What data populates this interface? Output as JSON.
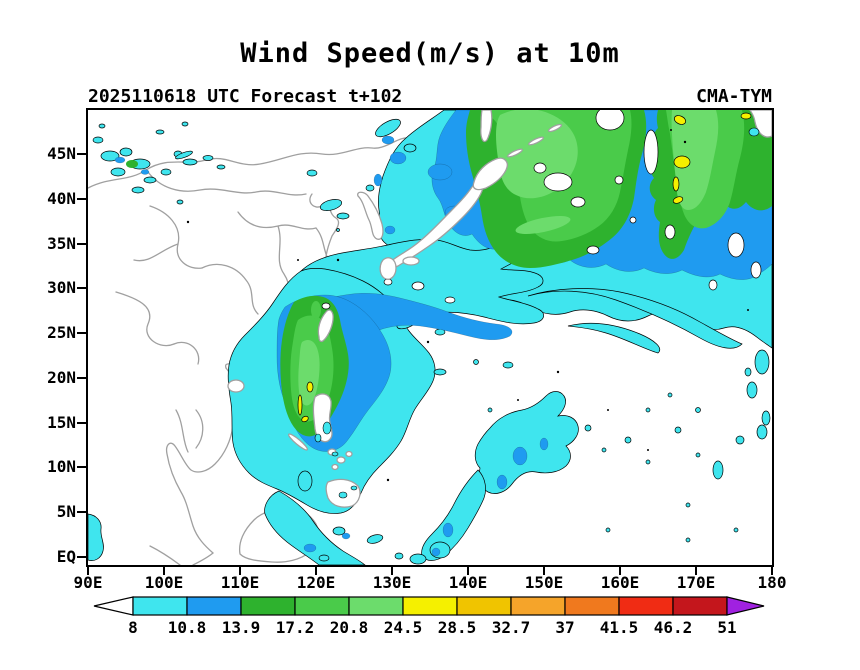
{
  "title": "Wind Speed(m/s) at 10m",
  "header": {
    "left": "2025110618 UTC Forecast t+102",
    "right": "CMA-TYM"
  },
  "axes": {
    "lat_labels": [
      "EQ",
      "5N",
      "10N",
      "15N",
      "20N",
      "25N",
      "30N",
      "35N",
      "40N",
      "45N"
    ],
    "lat_degrees": [
      0,
      5,
      10,
      15,
      20,
      25,
      30,
      35,
      40,
      45
    ],
    "lon_labels": [
      "90E",
      "100E",
      "110E",
      "120E",
      "130E",
      "140E",
      "150E",
      "160E",
      "170E",
      "180"
    ],
    "lon_degrees": [
      90,
      100,
      110,
      120,
      130,
      140,
      150,
      160,
      170,
      180
    ]
  },
  "colorbar": {
    "levels": [
      "8",
      "10.8",
      "13.9",
      "17.2",
      "20.8",
      "24.5",
      "28.5",
      "32.7",
      "37",
      "41.5",
      "46.2",
      "51"
    ],
    "cell_colors": [
      "#3FE5EE",
      "#1F9BF0",
      "#2EB22E",
      "#4ACB4A",
      "#6CDC6C",
      "#F5F000",
      "#F0C400",
      "#F5A42A",
      "#F0791E",
      "#F02C14",
      "#C4161C"
    ],
    "below_color": "#FFFFFF",
    "above_color": "#A021E0"
  },
  "chart_data": {
    "type": "heatmap",
    "subtype": "filled_contour_forecast_map",
    "title": "Wind Speed(m/s) at 10m",
    "model": "CMA-TYM",
    "init_time": "2025110618 UTC",
    "forecast_step": "t+102",
    "x": {
      "label": "longitude",
      "ticks": [
        "90E",
        "100E",
        "110E",
        "120E",
        "130E",
        "140E",
        "150E",
        "160E",
        "170E",
        "180"
      ],
      "range_deg": [
        90,
        180
      ]
    },
    "y": {
      "label": "latitude",
      "ticks": [
        "EQ",
        "5N",
        "10N",
        "15N",
        "20N",
        "25N",
        "30N",
        "35N",
        "40N",
        "45N"
      ],
      "range_deg": [
        0,
        50
      ]
    },
    "contour_levels_ms": [
      8,
      10.8,
      13.9,
      17.2,
      20.8,
      24.5,
      28.5,
      32.7,
      37,
      41.5,
      46.2,
      51
    ],
    "palette": [
      "#3FE5EE",
      "#1F9BF0",
      "#2EB22E",
      "#4ACB4A",
      "#6CDC6C",
      "#F5F000",
      "#F0C400",
      "#F5A42A",
      "#F0791E",
      "#F02C14",
      "#C4161C"
    ],
    "legend_position": "bottom",
    "grid": false,
    "regions": [
      {
        "name": "northwest-china-patches",
        "lon": "90E-108E",
        "lat": "40N-48N",
        "max_bin_ms": "17.2-20.8"
      },
      {
        "name": "sea-of-japan-okhotsk-storm-west-lobe",
        "lon": "128E-162E",
        "lat": "30N-50N",
        "max_bin_ms": "20.8-24.5"
      },
      {
        "name": "nw-pacific-storm-east-lobe",
        "lon": "162E-180",
        "lat": "33N-50N",
        "max_bin_ms": "24.5-28.5"
      },
      {
        "name": "east-china-sea-band",
        "lon": "117E-137E",
        "lat": "24N-33N",
        "max_bin_ms": "10.8-13.9"
      },
      {
        "name": "tropical-cyclone-west-of-luzon",
        "lon": "114E-125E",
        "lat": "10N-25N",
        "max_bin_ms": "24.5-28.5"
      },
      {
        "name": "south-china-and-sulu-seas",
        "lon": "108E-122E",
        "lat": "EQ-10N",
        "max_bin_ms": "10.8-13.9"
      },
      {
        "name": "caroline-islands-patch",
        "lon": "140E-152E",
        "lat": "4N-14N",
        "max_bin_ms": "10.8-13.9"
      },
      {
        "name": "bay-of-bengal-edge",
        "lon": "90E-93E",
        "lat": "EQ-5N",
        "max_bin_ms": "8-10.8"
      }
    ]
  }
}
